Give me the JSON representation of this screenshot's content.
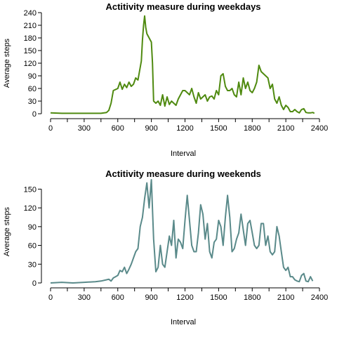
{
  "chart_data": [
    {
      "type": "line",
      "title": "Actitivity measure during weekdays",
      "xlabel": "Interval",
      "ylabel": "Average steps",
      "xlim": [
        0,
        2400
      ],
      "ylim": [
        0,
        240
      ],
      "xticks": [
        0,
        300,
        600,
        900,
        1200,
        1500,
        1800,
        2100,
        2400
      ],
      "yticks": [
        0,
        30,
        60,
        90,
        120,
        150,
        180,
        210,
        240
      ],
      "grid": false,
      "color": "#4f8a10",
      "series": [
        {
          "x": [
            0,
            100,
            200,
            300,
            400,
            450,
            500,
            520,
            540,
            560,
            600,
            620,
            640,
            660,
            680,
            700,
            720,
            740,
            760,
            780,
            800,
            810,
            820,
            830,
            840,
            850,
            860,
            870,
            880,
            890,
            900,
            910,
            920,
            940,
            960,
            980,
            1000,
            1020,
            1040,
            1060,
            1080,
            1100,
            1120,
            1140,
            1160,
            1180,
            1200,
            1220,
            1240,
            1260,
            1280,
            1300,
            1320,
            1340,
            1360,
            1380,
            1400,
            1420,
            1440,
            1460,
            1480,
            1500,
            1520,
            1540,
            1560,
            1580,
            1600,
            1620,
            1640,
            1660,
            1680,
            1700,
            1720,
            1740,
            1760,
            1780,
            1800,
            1820,
            1840,
            1860,
            1880,
            1900,
            1920,
            1940,
            1960,
            1980,
            2000,
            2020,
            2040,
            2060,
            2080,
            2100,
            2120,
            2140,
            2160,
            2180,
            2200,
            2220,
            2240,
            2260,
            2280,
            2300,
            2320,
            2340,
            2355
          ],
          "y": [
            2,
            1,
            1,
            1,
            1,
            1,
            3,
            8,
            25,
            55,
            60,
            75,
            58,
            70,
            62,
            75,
            65,
            70,
            85,
            80,
            110,
            125,
            175,
            210,
            232,
            205,
            190,
            185,
            180,
            175,
            170,
            120,
            30,
            25,
            30,
            20,
            45,
            18,
            40,
            22,
            30,
            25,
            20,
            35,
            45,
            55,
            55,
            50,
            45,
            60,
            40,
            25,
            50,
            35,
            40,
            45,
            30,
            40,
            42,
            35,
            55,
            45,
            90,
            95,
            65,
            55,
            55,
            60,
            45,
            40,
            75,
            45,
            85,
            60,
            75,
            55,
            50,
            60,
            75,
            115,
            100,
            95,
            90,
            85,
            60,
            70,
            35,
            25,
            40,
            20,
            10,
            20,
            15,
            5,
            5,
            10,
            5,
            2,
            10,
            12,
            3,
            2,
            2,
            3,
            1
          ]
        }
      ]
    },
    {
      "type": "line",
      "title": "Actitivity measure during weekends",
      "xlabel": "Interval",
      "ylabel": "Average steps",
      "xlim": [
        0,
        2400
      ],
      "ylim": [
        0,
        165
      ],
      "xticks": [
        0,
        300,
        600,
        900,
        1200,
        1500,
        1800,
        2100,
        2400
      ],
      "yticks": [
        0,
        30,
        60,
        90,
        120,
        150
      ],
      "grid": false,
      "color": "#5a8a8a",
      "series": [
        {
          "x": [
            0,
            100,
            200,
            300,
            400,
            450,
            500,
            520,
            540,
            560,
            580,
            600,
            620,
            640,
            660,
            680,
            700,
            720,
            740,
            760,
            780,
            800,
            820,
            840,
            860,
            880,
            900,
            920,
            940,
            960,
            980,
            1000,
            1020,
            1040,
            1060,
            1080,
            1100,
            1120,
            1140,
            1160,
            1180,
            1200,
            1220,
            1240,
            1260,
            1280,
            1300,
            1320,
            1340,
            1360,
            1380,
            1400,
            1420,
            1440,
            1460,
            1480,
            1500,
            1520,
            1540,
            1560,
            1580,
            1600,
            1620,
            1640,
            1660,
            1680,
            1700,
            1720,
            1740,
            1760,
            1780,
            1800,
            1820,
            1840,
            1860,
            1880,
            1900,
            1920,
            1940,
            1960,
            1980,
            2000,
            2020,
            2040,
            2060,
            2080,
            2100,
            2120,
            2140,
            2160,
            2180,
            2200,
            2220,
            2240,
            2260,
            2280,
            2300,
            2320,
            2340
          ],
          "y": [
            0,
            1,
            0,
            1,
            2,
            3,
            5,
            6,
            3,
            8,
            10,
            12,
            20,
            18,
            25,
            15,
            22,
            30,
            40,
            50,
            55,
            90,
            105,
            135,
            160,
            120,
            165,
            70,
            18,
            25,
            60,
            30,
            25,
            50,
            75,
            60,
            100,
            40,
            70,
            65,
            55,
            100,
            140,
            100,
            60,
            50,
            50,
            80,
            125,
            110,
            70,
            95,
            50,
            40,
            65,
            70,
            100,
            90,
            60,
            105,
            140,
            105,
            50,
            55,
            70,
            80,
            110,
            85,
            60,
            95,
            100,
            80,
            60,
            55,
            60,
            95,
            95,
            60,
            75,
            50,
            45,
            50,
            90,
            75,
            50,
            25,
            20,
            25,
            10,
            10,
            5,
            3,
            2,
            12,
            15,
            3,
            2,
            10,
            3
          ]
        }
      ]
    }
  ]
}
